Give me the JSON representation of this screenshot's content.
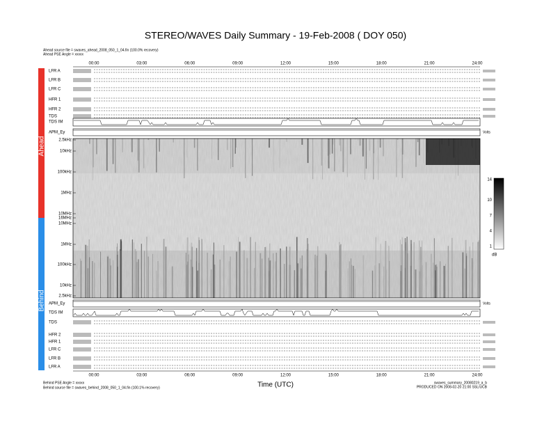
{
  "title": "STEREO/WAVES Daily Summary - 19-Feb-2008 ( DOY 050)",
  "ahead": {
    "source_file": "Ahead source file = swaves_ahead_2008_050_1_04.fin (100.0% recovery)",
    "pse_angle": "Ahead PSE Angle = xxxxx",
    "side_label": "Ahead",
    "panels": [
      "LFR A",
      "LFR B",
      "LFR C",
      "HFR 1",
      "HFR 2",
      "TDS",
      "TDS IM",
      "APM_Ey"
    ]
  },
  "behind": {
    "source_file": "Behind source file = swaves_behind_2008_050_1_04.fin (100.1% recovery)",
    "pse_angle": "Behind PSE Angle = xxxxx",
    "side_label": "Behind",
    "panels": [
      "APM_Ey",
      "TDS IM",
      "TDS",
      "HFR 2",
      "HFR 1",
      "LFR C",
      "LFR B",
      "LFR A"
    ]
  },
  "time_axis": {
    "ticks": [
      "00:00",
      "03:00",
      "06:00",
      "09:00",
      "12:00",
      "15:00",
      "18:00",
      "21:00",
      "24:00"
    ],
    "label": "Time (UTC)"
  },
  "frequency_labels": [
    "2.5kHz",
    "10kHz",
    "100kHz",
    "1MHz",
    "10MHz",
    "16MHz",
    "10MHz",
    "1MHz",
    "100kHz",
    "10kHz",
    "2.5kHz"
  ],
  "colorbar": {
    "ticks": [
      14,
      10,
      7,
      4,
      1
    ],
    "unit": "dB"
  },
  "apm_unit": "Volts",
  "footer": {
    "product": "swaves_summary_20080219_a_b",
    "produced": "PRODUCED ON 2008-02-20 21:00 SSL/UCB"
  }
}
